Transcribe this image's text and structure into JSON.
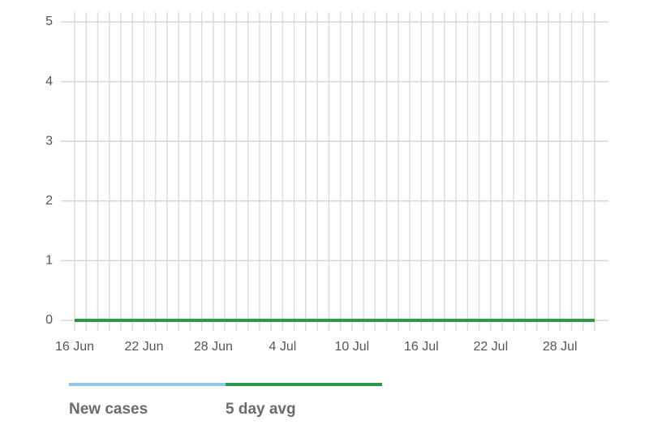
{
  "chart_data": {
    "type": "line",
    "categories": [
      "16 Jun",
      null,
      null,
      null,
      null,
      null,
      "22 Jun",
      null,
      null,
      null,
      null,
      null,
      "28 Jun",
      null,
      null,
      null,
      null,
      null,
      "4 Jul",
      null,
      null,
      null,
      null,
      null,
      "10 Jul",
      null,
      null,
      null,
      null,
      null,
      "16 Jul",
      null,
      null,
      null,
      null,
      null,
      "22 Jul",
      null,
      null,
      null,
      null,
      null,
      "28 Jul",
      null,
      null,
      null
    ],
    "series": [
      {
        "name": "New cases",
        "color": "#8ecae6",
        "values": [
          0,
          0,
          0,
          0,
          0,
          0,
          0,
          0,
          0,
          0,
          0,
          0,
          0,
          0,
          0,
          0,
          0,
          0,
          0,
          0,
          0,
          0,
          0,
          0,
          0,
          0,
          0,
          0,
          0,
          0,
          0,
          0,
          0,
          0,
          0,
          0,
          0,
          0,
          0,
          0,
          0,
          0,
          0,
          0,
          0,
          0
        ]
      },
      {
        "name": "5 day avg",
        "color": "#2e9a48",
        "values": [
          0,
          0,
          0,
          0,
          0,
          0,
          0,
          0,
          0,
          0,
          0,
          0,
          0,
          0,
          0,
          0,
          0,
          0,
          0,
          0,
          0,
          0,
          0,
          0,
          0,
          0,
          0,
          0,
          0,
          0,
          0,
          0,
          0,
          0,
          0,
          0,
          0,
          0,
          0,
          0,
          0,
          0,
          0,
          0,
          0,
          0
        ]
      }
    ],
    "ylim": [
      0,
      5
    ],
    "yticks": [
      0,
      1,
      2,
      3,
      4,
      5
    ],
    "grid": true
  }
}
